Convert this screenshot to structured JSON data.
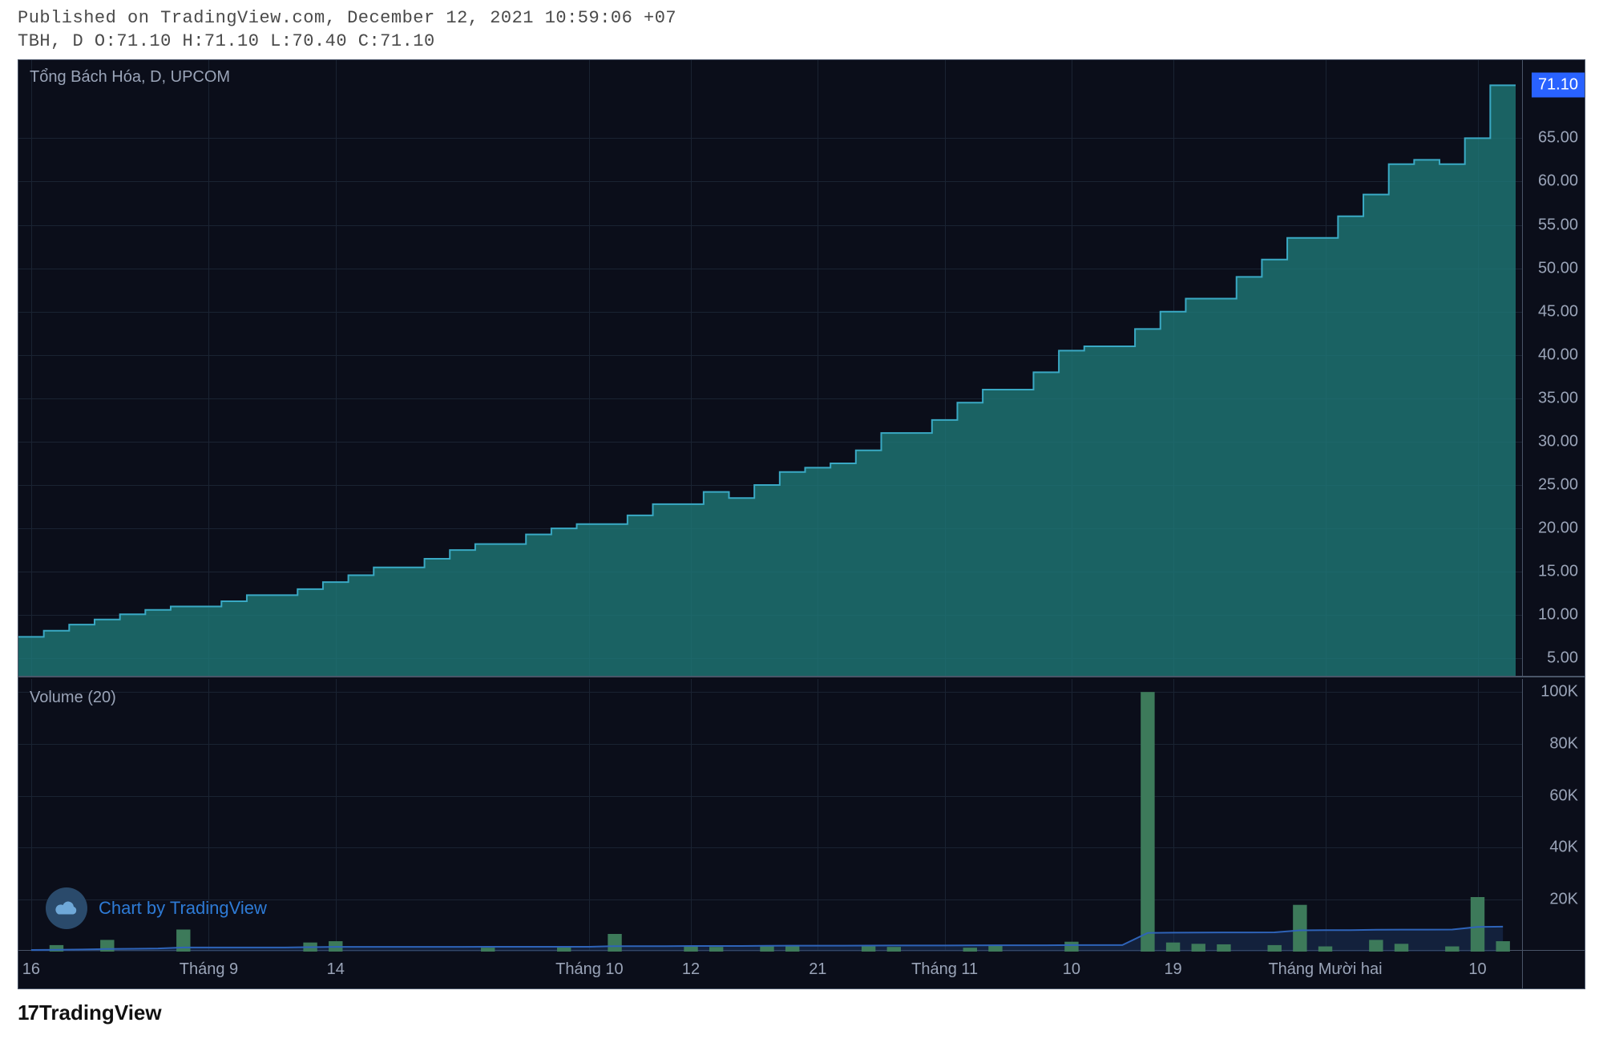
{
  "header": {
    "published_line": "Published on TradingView.com, December 12, 2021 10:59:06 +07",
    "ohlc_line": "TBH, D O:71.10 H:71.10 L:70.40 C:71.10"
  },
  "colors": {
    "background": "#0b0e1a",
    "grid": "#1a2332",
    "border": "#4a5568",
    "text": "#9aa4b8",
    "area_fill": "#1f7a78",
    "area_fill_opacity": 0.78,
    "area_stroke": "#3aa9c4",
    "area_stroke_width": 2,
    "price_badge_bg": "#2962ff",
    "price_badge_text": "#ffffff",
    "volume_bar": "#3d7a5a",
    "volume_ma_stroke": "#2e63b8",
    "volume_ma_fill": "#1c3a66",
    "volume_ma_fill_opacity": 0.45,
    "watermark_circle": "#2a4a6b",
    "watermark_text": "#2e7bd6"
  },
  "price_pane": {
    "title": "Tổng Bách Hóa, D, UPCOM",
    "price_badge": "71.10",
    "ymin": 3,
    "ymax": 74,
    "yticks": [
      5,
      10,
      15,
      20,
      25,
      30,
      35,
      40,
      45,
      50,
      55,
      60,
      65
    ],
    "ytick_labels": [
      "5.00",
      "10.00",
      "15.00",
      "20.00",
      "25.00",
      "30.00",
      "35.00",
      "40.00",
      "45.00",
      "50.00",
      "55.00",
      "60.00",
      "65.00"
    ],
    "series_type": "step-area",
    "step_values": [
      7.5,
      8.2,
      8.9,
      9.5,
      10.1,
      10.6,
      11.0,
      11.0,
      11.6,
      12.3,
      12.3,
      13.0,
      13.8,
      14.6,
      15.5,
      15.5,
      16.5,
      17.5,
      18.2,
      18.2,
      19.3,
      20.0,
      20.5,
      20.5,
      21.5,
      22.8,
      22.8,
      24.2,
      23.5,
      25.0,
      26.5,
      27.0,
      27.5,
      29.0,
      31.0,
      31.0,
      32.5,
      34.5,
      36.0,
      36.0,
      38.0,
      40.5,
      41.0,
      41.0,
      43.0,
      45.0,
      46.5,
      46.5,
      49.0,
      51.0,
      53.5,
      53.5,
      56.0,
      58.5,
      62.0,
      62.5,
      62.0,
      65.0,
      71.1
    ]
  },
  "volume_pane": {
    "title": "Volume (20)",
    "ymin": 0,
    "ymax": 105000,
    "yticks": [
      20000,
      40000,
      60000,
      80000,
      100000
    ],
    "ytick_labels": [
      "20K",
      "40K",
      "60K",
      "80K",
      "100K"
    ],
    "bars": [
      0,
      2500,
      0,
      4500,
      0,
      0,
      8500,
      0,
      0,
      0,
      0,
      3500,
      4000,
      0,
      0,
      0,
      0,
      0,
      1500,
      0,
      0,
      2000,
      0,
      6800,
      0,
      0,
      2000,
      1800,
      0,
      2200,
      2500,
      0,
      0,
      2000,
      1800,
      0,
      0,
      1500,
      2500,
      0,
      0,
      3800,
      0,
      0,
      100000,
      3500,
      3000,
      2800,
      0,
      2500,
      18000,
      2000,
      0,
      4500,
      3000,
      0,
      2000,
      21000,
      4000
    ],
    "ma": [
      600,
      700,
      800,
      1000,
      1100,
      1200,
      1600,
      1600,
      1600,
      1600,
      1600,
      1700,
      1800,
      1800,
      1800,
      1800,
      1800,
      1800,
      1850,
      1850,
      1850,
      1870,
      1870,
      2100,
      2100,
      2100,
      2150,
      2180,
      2180,
      2220,
      2280,
      2280,
      2280,
      2320,
      2350,
      2350,
      2350,
      2380,
      2420,
      2420,
      2420,
      2500,
      2500,
      2500,
      7200,
      7300,
      7350,
      7380,
      7380,
      7420,
      8200,
      8250,
      8250,
      8400,
      8450,
      8450,
      8480,
      9500,
      9600
    ]
  },
  "time_axis": {
    "n_points": 59,
    "ticks": [
      {
        "idx": 0,
        "label": "16"
      },
      {
        "idx": 7,
        "label": "Tháng 9"
      },
      {
        "idx": 12,
        "label": "14"
      },
      {
        "idx": 22,
        "label": "Tháng 10"
      },
      {
        "idx": 26,
        "label": "12"
      },
      {
        "idx": 31,
        "label": "21"
      },
      {
        "idx": 36,
        "label": "Tháng 11"
      },
      {
        "idx": 41,
        "label": "10"
      },
      {
        "idx": 45,
        "label": "19"
      },
      {
        "idx": 51,
        "label": "Tháng Mười hai"
      },
      {
        "idx": 57,
        "label": "10"
      }
    ]
  },
  "watermark": {
    "text": "Chart by TradingView"
  },
  "footer": {
    "text": "TradingView"
  }
}
